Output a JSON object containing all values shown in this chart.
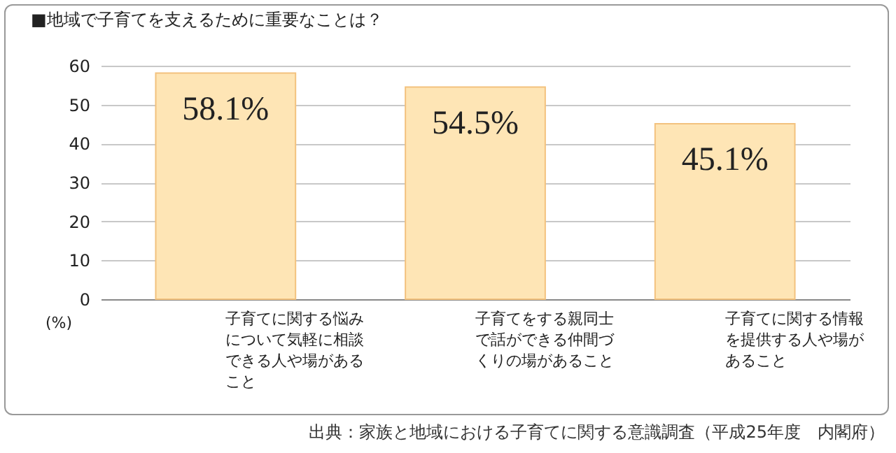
{
  "chart_data": {
    "type": "bar",
    "title": "■地域で子育てを支えるために重要なことは？",
    "categories": [
      "子育てに関する悩みについて気軽に相談できる人や場があること",
      "子育てをする親同士で話ができる仲間づくりの場があること",
      "子育てに関する情報を提供する人や場があること"
    ],
    "values": [
      58.1,
      54.5,
      45.1
    ],
    "value_labels": [
      "58.1%",
      "54.5%",
      "45.1%"
    ],
    "color": "#fee5b5",
    "ylabel": "(%)",
    "ylim": [
      0,
      60
    ],
    "yticks": [
      0,
      10,
      20,
      30,
      40,
      50,
      60
    ],
    "grid": "y",
    "annotations": [
      "出典：家族と地域における子育てに関する意識調査（平成25年度　内閣府）"
    ]
  }
}
